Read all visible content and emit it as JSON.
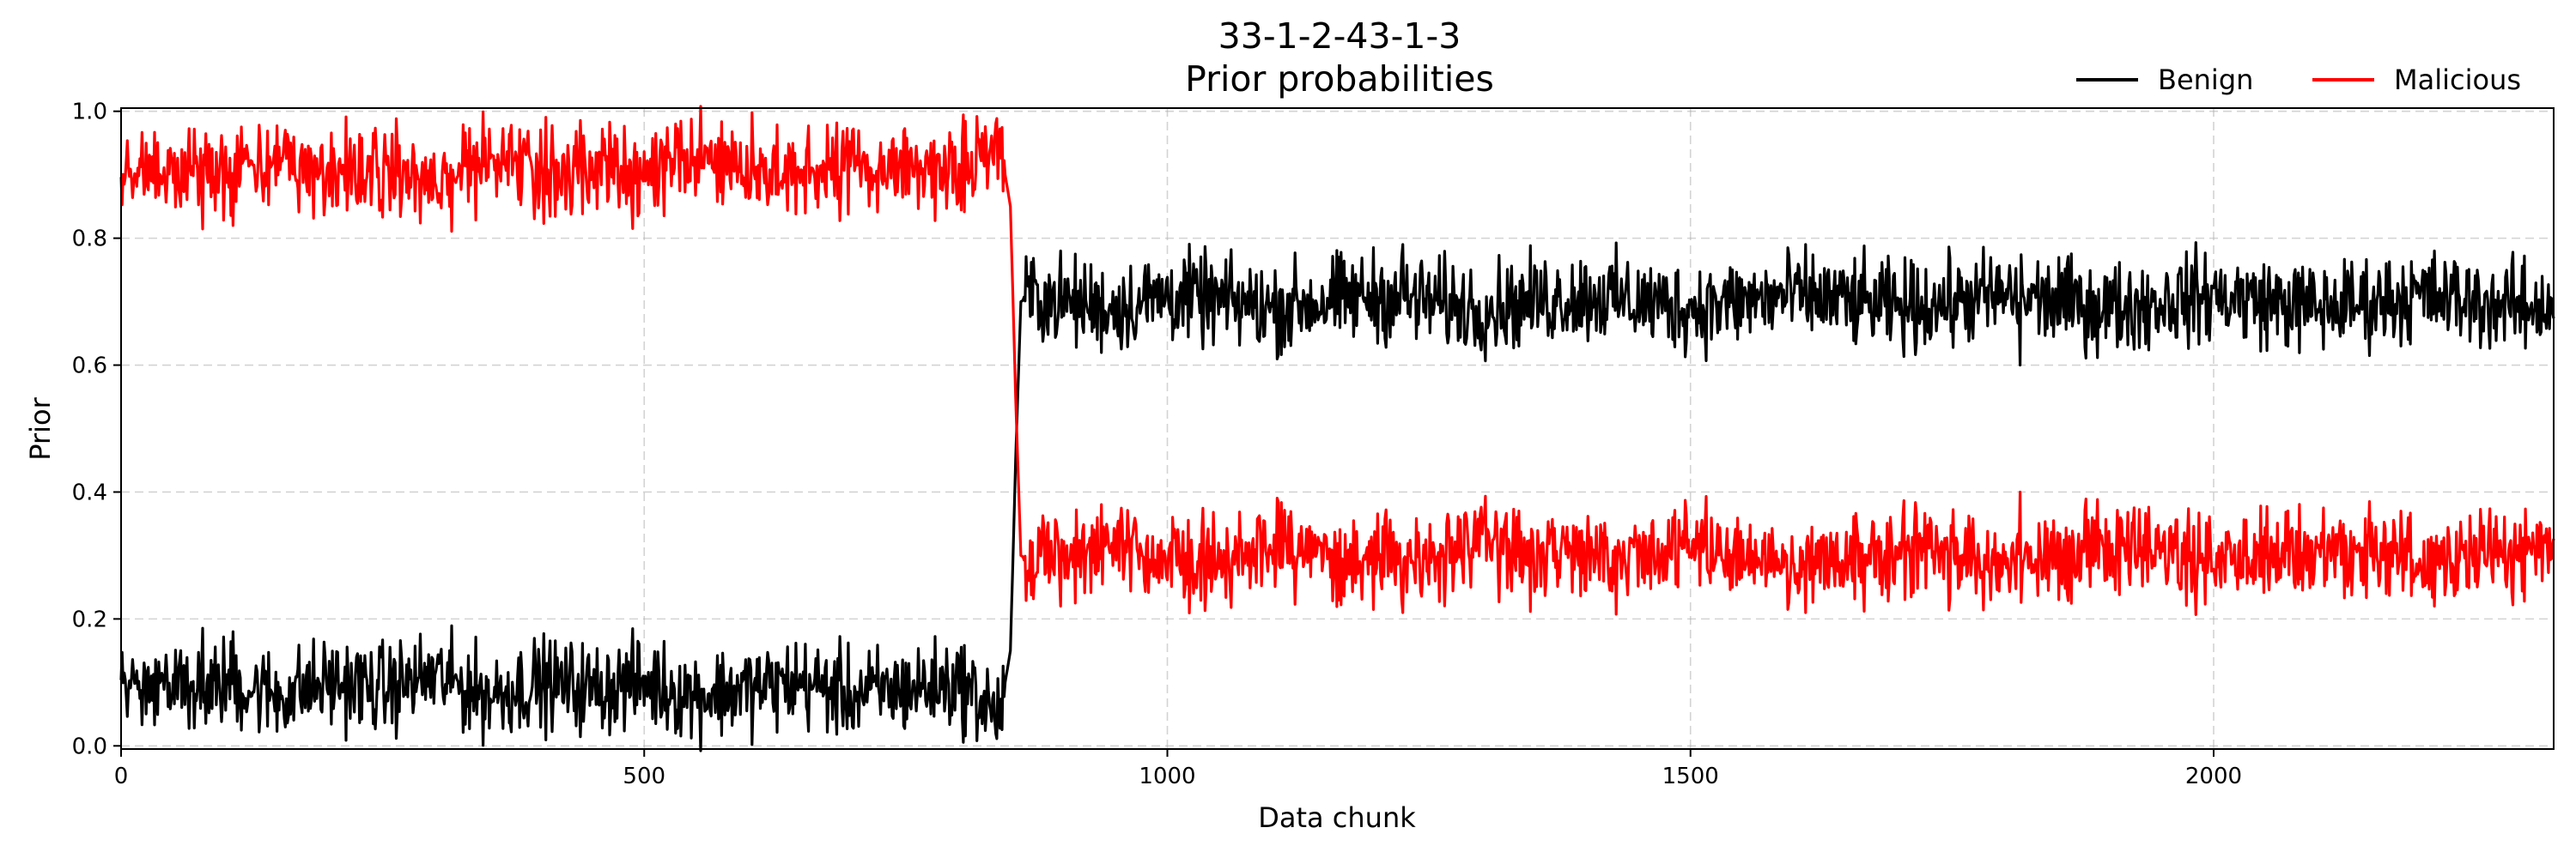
{
  "chart_data": {
    "type": "line",
    "title": "33-1-2-43-1-3",
    "subtitle": "Prior probabilities",
    "xlabel": "Data chunk",
    "ylabel": "Prior",
    "xlim": [
      0,
      2325
    ],
    "ylim": [
      -0.005,
      1.005
    ],
    "xticks": [
      0,
      500,
      1000,
      1500,
      2000
    ],
    "xtick_labels": [
      "0",
      "500",
      "1000",
      "1500",
      "2000"
    ],
    "yticks": [
      0.0,
      0.2,
      0.4,
      0.6,
      0.8,
      1.0
    ],
    "ytick_labels": [
      "0.0",
      "0.2",
      "0.4",
      "0.6",
      "0.8",
      "1.0"
    ],
    "grid": true,
    "legend_position": "top-right, outside plot area",
    "series": [
      {
        "name": "Benign",
        "color": "#000000",
        "x": [
          0,
          50,
          100,
          150,
          200,
          250,
          300,
          350,
          400,
          450,
          500,
          550,
          600,
          650,
          700,
          750,
          800,
          840,
          850,
          855,
          860,
          870,
          900,
          950,
          1000,
          1050,
          1100,
          1150,
          1200,
          1250,
          1300,
          1350,
          1400,
          1450,
          1500,
          1550,
          1600,
          1650,
          1700,
          1750,
          1800,
          1850,
          1900,
          1950,
          2000,
          2050,
          2100,
          2150,
          2200,
          2250,
          2300,
          2325
        ],
        "y": [
          0.09,
          0.11,
          0.1,
          0.08,
          0.1,
          0.09,
          0.11,
          0.08,
          0.1,
          0.09,
          0.1,
          0.08,
          0.09,
          0.1,
          0.08,
          0.09,
          0.1,
          0.05,
          0.15,
          0.45,
          0.7,
          0.71,
          0.7,
          0.69,
          0.71,
          0.7,
          0.69,
          0.7,
          0.71,
          0.7,
          0.69,
          0.7,
          0.71,
          0.7,
          0.69,
          0.7,
          0.71,
          0.7,
          0.69,
          0.7,
          0.71,
          0.7,
          0.69,
          0.7,
          0.71,
          0.7,
          0.69,
          0.7,
          0.71,
          0.7,
          0.69,
          0.7
        ],
        "noise_amplitude": 0.035,
        "extremes": [
          {
            "x": 107,
            "y": 0.18
          },
          {
            "x": 1225,
            "y": 0.79
          },
          {
            "x": 1610,
            "y": 0.79
          },
          {
            "x": 1815,
            "y": 0.6
          }
        ]
      },
      {
        "name": "Malicious",
        "color": "#ff0000",
        "x": [
          0,
          50,
          100,
          150,
          200,
          250,
          300,
          350,
          400,
          450,
          500,
          550,
          600,
          650,
          700,
          750,
          800,
          840,
          850,
          855,
          860,
          870,
          900,
          950,
          1000,
          1050,
          1100,
          1150,
          1200,
          1250,
          1300,
          1350,
          1400,
          1450,
          1500,
          1550,
          1600,
          1650,
          1700,
          1750,
          1800,
          1850,
          1900,
          1950,
          2000,
          2050,
          2100,
          2150,
          2200,
          2250,
          2300,
          2325
        ],
        "y": [
          0.91,
          0.89,
          0.9,
          0.92,
          0.9,
          0.91,
          0.89,
          0.92,
          0.9,
          0.91,
          0.9,
          0.92,
          0.91,
          0.9,
          0.92,
          0.91,
          0.9,
          0.95,
          0.85,
          0.55,
          0.3,
          0.29,
          0.3,
          0.31,
          0.29,
          0.3,
          0.31,
          0.3,
          0.29,
          0.3,
          0.31,
          0.3,
          0.29,
          0.3,
          0.31,
          0.3,
          0.29,
          0.3,
          0.31,
          0.3,
          0.29,
          0.3,
          0.31,
          0.3,
          0.29,
          0.3,
          0.31,
          0.3,
          0.29,
          0.3,
          0.31,
          0.3
        ],
        "noise_amplitude": 0.035,
        "extremes": [
          {
            "x": 107,
            "y": 0.82
          },
          {
            "x": 1225,
            "y": 0.21
          },
          {
            "x": 1610,
            "y": 0.21
          },
          {
            "x": 1815,
            "y": 0.4
          }
        ]
      }
    ]
  }
}
